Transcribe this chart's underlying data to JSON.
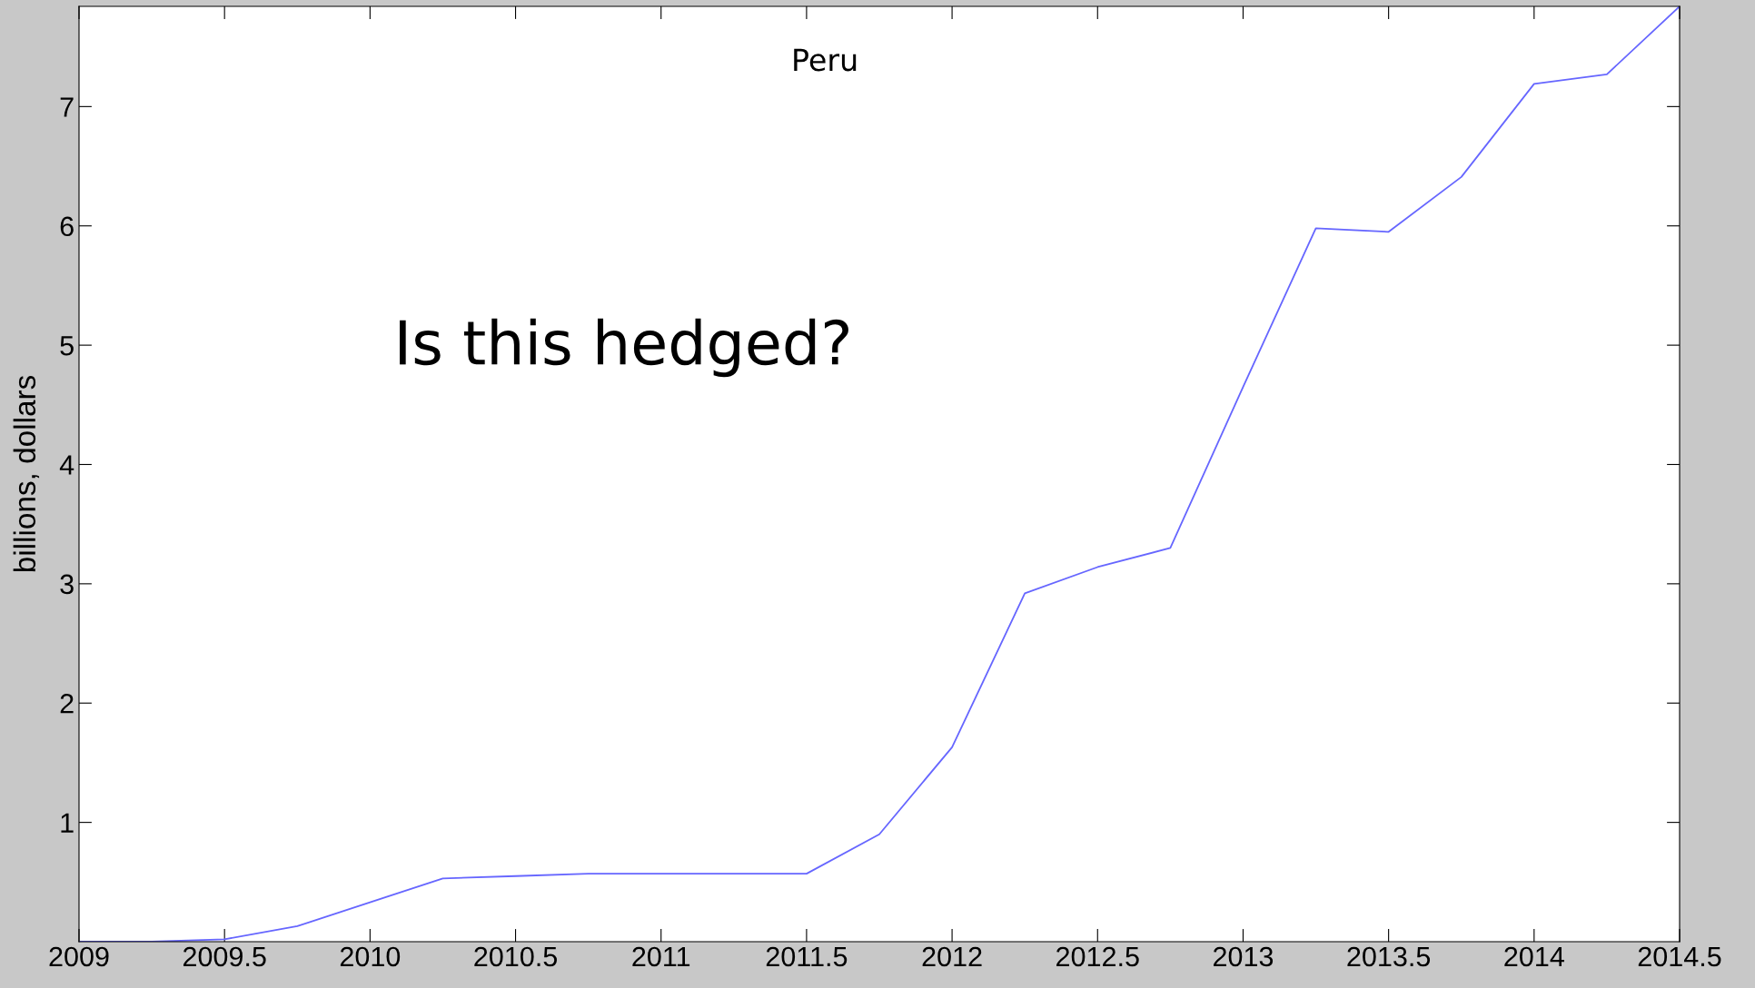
{
  "chart_data": {
    "type": "line",
    "title": "Peru",
    "ylabel": "billions, dollars",
    "x": [
      2009,
      2009.25,
      2009.375,
      2009.5,
      2009.75,
      2010,
      2010.25,
      2010.5,
      2010.75,
      2011,
      2011.25,
      2011.5,
      2011.75,
      2012,
      2012.25,
      2012.5,
      2012.75,
      2013,
      2013.25,
      2013.5,
      2013.75,
      2014,
      2014.25,
      2014.5
    ],
    "series": [
      {
        "color": "#6666ff",
        "values": [
          0,
          0,
          0.01,
          0.02,
          0.13,
          0.33,
          0.53,
          0.55,
          0.57,
          0.57,
          0.57,
          0.57,
          0.9,
          1.63,
          2.92,
          3.14,
          3.3,
          4.65,
          5.98,
          5.95,
          6.41,
          7.19,
          7.27,
          7.84
        ]
      }
    ],
    "xlim": [
      2009,
      2014.5
    ],
    "ylim": [
      0,
      7.84
    ],
    "xticks": [
      2009,
      2009.5,
      2010,
      2010.5,
      2011,
      2011.5,
      2012,
      2012.5,
      2013,
      2013.5,
      2014,
      2014.5
    ],
    "yticks": [
      1,
      2,
      3,
      4,
      5,
      6,
      7
    ],
    "annotations": [
      "Is this hedged?"
    ]
  }
}
